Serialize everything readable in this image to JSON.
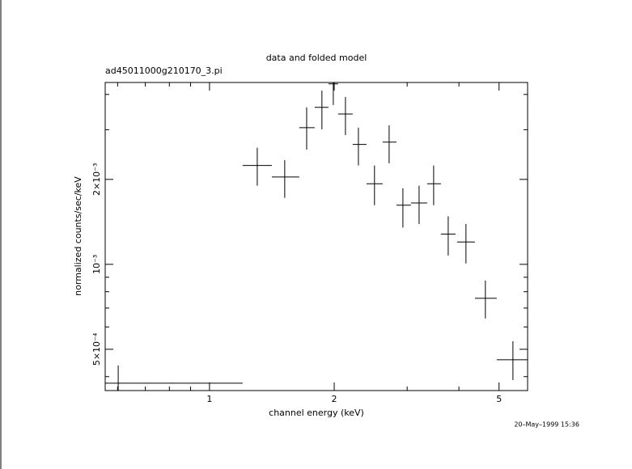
{
  "chart_data": {
    "type": "errorcross",
    "title": "data and folded model",
    "subtitle": "ad45011000g210170_3.pi",
    "xlabel": "channel energy (keV)",
    "ylabel": "normalized counts/sec/keV",
    "timestamp": "20–May–1999 15:36",
    "xscale": "log",
    "yscale": "log",
    "xlim": [
      0.56,
      5.86
    ],
    "ylim": [
      0.000357,
      0.00441
    ],
    "xticks": [
      1,
      2,
      5
    ],
    "xminorticks": [
      0.6,
      0.7,
      0.8,
      0.9,
      3,
      4
    ],
    "yticks": [
      {
        "value": 0.0005,
        "label": "5×10⁻⁴"
      },
      {
        "value": 0.001,
        "label": "10⁻³"
      },
      {
        "value": 0.002,
        "label": "2×10⁻³"
      }
    ],
    "yminorticks": [
      0.0004,
      0.0006,
      0.0007,
      0.0008,
      0.0009,
      0.003,
      0.004
    ],
    "color": "#000000",
    "series": [
      {
        "name": "data",
        "x": [
          0.602,
          1.304,
          1.519,
          1.716,
          1.868,
          1.99,
          2.129,
          2.288,
          2.502,
          2.714,
          2.93,
          3.206,
          3.476,
          3.769,
          4.16,
          4.634,
          5.401
        ],
        "x_low": [
          0.56,
          1.202,
          1.414,
          1.647,
          1.794,
          1.937,
          2.044,
          2.216,
          2.393,
          2.618,
          2.827,
          3.064,
          3.353,
          3.619,
          3.96,
          4.372,
          4.936
        ],
        "x_high": [
          1.202,
          1.414,
          1.647,
          1.794,
          1.937,
          2.044,
          2.216,
          2.393,
          2.618,
          2.827,
          3.064,
          3.353,
          3.619,
          3.925,
          4.372,
          4.936,
          5.856
        ],
        "values": [
          0.000379,
          0.00224,
          0.00204,
          0.00305,
          0.0036,
          0.00436,
          0.00341,
          0.00266,
          0.00193,
          0.00271,
          0.00162,
          0.00165,
          0.00193,
          0.00128,
          0.0012,
          0.000758,
          0.000459
        ],
        "y_low": [
          0.000341,
          0.0019,
          0.00172,
          0.00255,
          0.00301,
          0.00367,
          0.00287,
          0.00224,
          0.00162,
          0.00228,
          0.00135,
          0.00139,
          0.00162,
          0.001075,
          0.001007,
          0.000643,
          0.000389
        ],
        "y_high": [
          0.000438,
          0.00259,
          0.00234,
          0.0036,
          0.00413,
          0.00459,
          0.00392,
          0.00305,
          0.00224,
          0.00311,
          0.00186,
          0.0019,
          0.00224,
          0.00148,
          0.00139,
          0.000876,
          0.000534
        ]
      }
    ]
  }
}
